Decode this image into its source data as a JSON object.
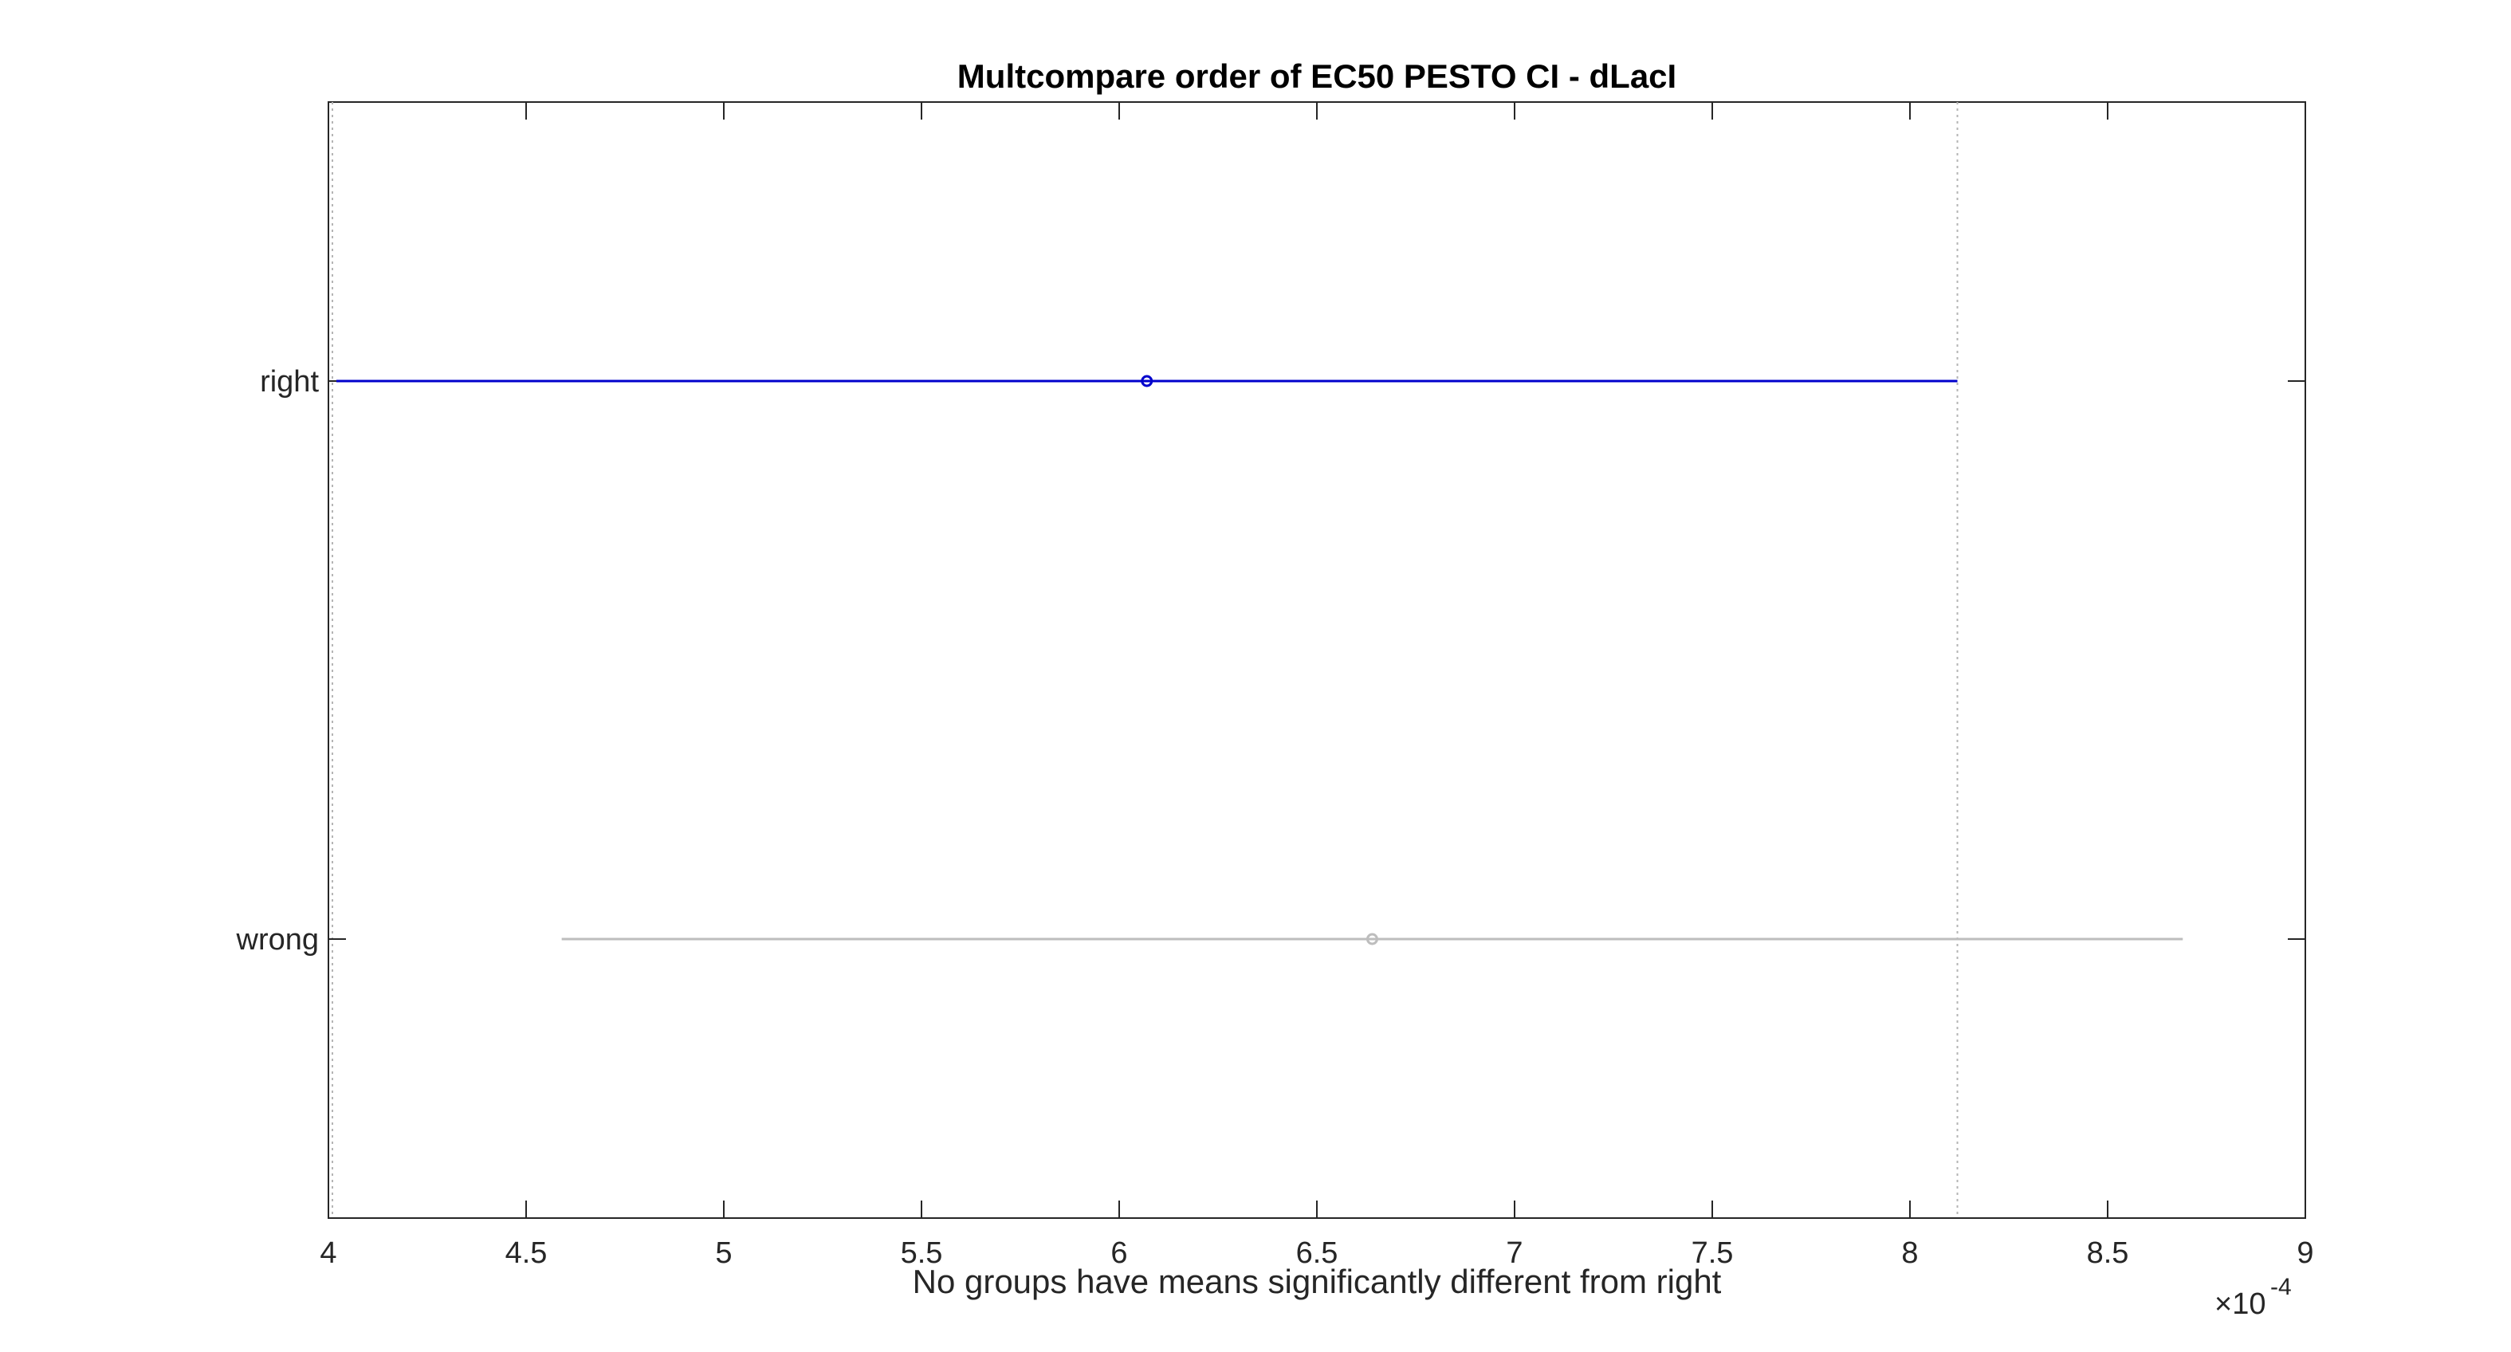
{
  "chart_data": {
    "type": "scatter",
    "title": "Multcompare order of EC50 PESTO CI - dLacI",
    "xlabel": "No groups have means significantly different from right",
    "ylabel": "",
    "x_multiplier": {
      "base": "×10",
      "exponent": "-4"
    },
    "xlim": [
      4,
      9
    ],
    "x_ticks": [
      4,
      4.5,
      5,
      5.5,
      6,
      6.5,
      7,
      7.5,
      8,
      8.5,
      9
    ],
    "x_tick_labels": [
      "4",
      "4.5",
      "5",
      "5.5",
      "6",
      "6.5",
      "7",
      "7.5",
      "8",
      "8.5",
      "9"
    ],
    "categories": [
      "right",
      "wrong"
    ],
    "series": [
      {
        "group": "right",
        "mean": 6.07,
        "lower": 4.0,
        "upper": 8.12,
        "color": "#0000cc",
        "selected": true
      },
      {
        "group": "wrong",
        "mean": 6.64,
        "lower": 4.59,
        "upper": 8.69,
        "color": "#bdbdbd",
        "selected": false
      }
    ],
    "reference_lines": [
      4.0,
      8.12
    ],
    "grid": false
  }
}
